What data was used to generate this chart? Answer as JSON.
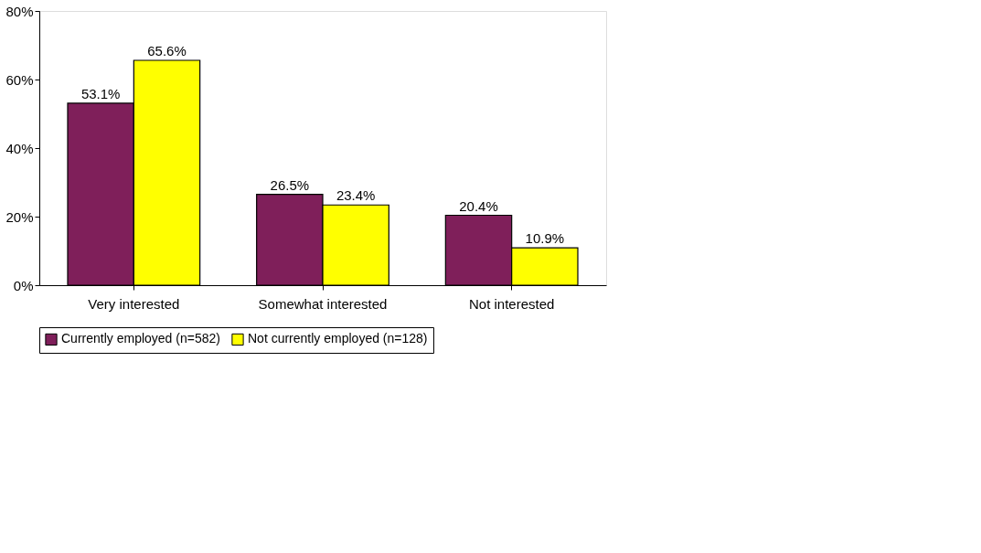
{
  "chart_data": {
    "type": "bar",
    "categories": [
      "Very interested",
      "Somewhat interested",
      "Not interested"
    ],
    "series": [
      {
        "name": "Currently employed (n=582)",
        "color": "#7f1f5a",
        "values": [
          53.1,
          26.5,
          20.4
        ],
        "value_labels": [
          "53.1%",
          "26.5%",
          "20.4%"
        ]
      },
      {
        "name": "Not currently employed (n=128)",
        "color": "#ffff00",
        "values": [
          65.6,
          23.4,
          10.9
        ],
        "value_labels": [
          "65.6%",
          "23.4%",
          "10.9%"
        ]
      }
    ],
    "ylim": [
      0,
      80
    ],
    "yticks": [
      {
        "value": 0,
        "label": "0%"
      },
      {
        "value": 20,
        "label": "20%"
      },
      {
        "value": 40,
        "label": "40%"
      },
      {
        "value": 60,
        "label": "60%"
      },
      {
        "value": 80,
        "label": "80%"
      }
    ],
    "grid": false,
    "legend": "bottom"
  }
}
